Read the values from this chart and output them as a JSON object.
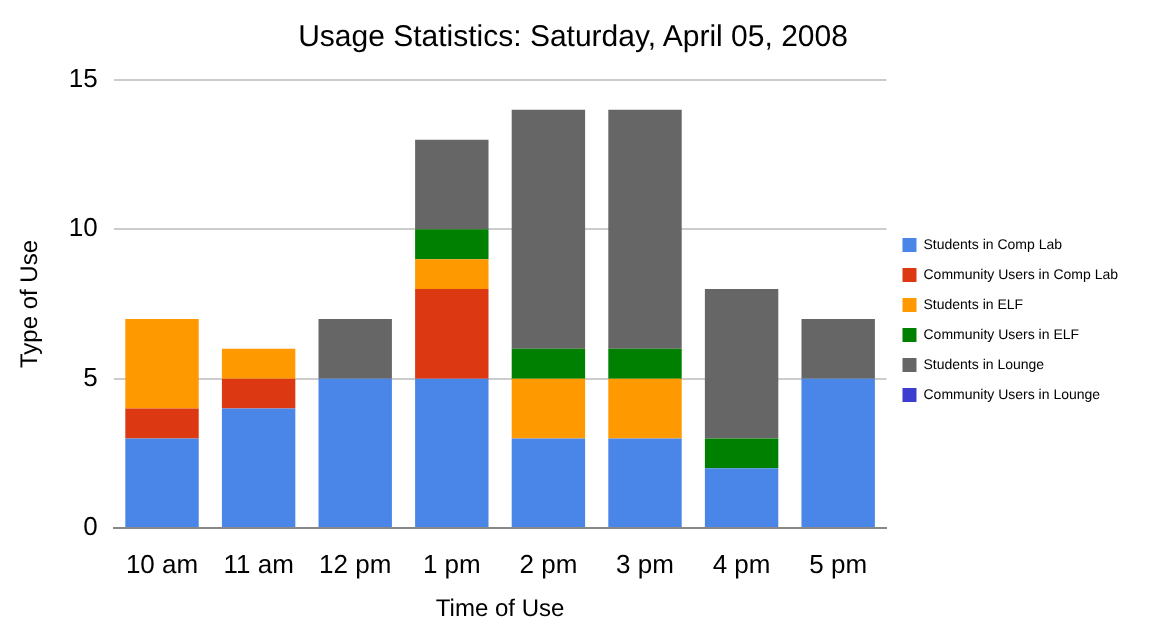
{
  "chart_data": {
    "type": "bar",
    "title": "Usage Statistics: Saturday, April 05, 2008",
    "xlabel": "Time of Use",
    "ylabel": "Type of Use",
    "categories": [
      "10 am",
      "11 am",
      "12 pm",
      "1 pm",
      "2 pm",
      "3 pm",
      "4 pm",
      "5 pm"
    ],
    "stacked": true,
    "ylim": [
      0,
      15
    ],
    "yticks": [
      0,
      5,
      10,
      15
    ],
    "grid": "y",
    "legend": "right",
    "series": [
      {
        "name": "Students in Comp Lab",
        "color": "#4a86e8",
        "values": [
          3,
          4,
          5,
          5,
          3,
          3,
          2,
          5
        ]
      },
      {
        "name": "Community Users in Comp Lab",
        "color": "#dc3912",
        "values": [
          1,
          1,
          0,
          3,
          0,
          0,
          0,
          0
        ]
      },
      {
        "name": "Students in ELF",
        "color": "#ff9900",
        "values": [
          3,
          1,
          0,
          1,
          2,
          2,
          0,
          0
        ]
      },
      {
        "name": "Community Users in ELF",
        "color": "#008000",
        "values": [
          0,
          0,
          0,
          1,
          1,
          1,
          1,
          0
        ]
      },
      {
        "name": "Students in Lounge",
        "color": "#666666",
        "values": [
          0,
          0,
          2,
          3,
          8,
          8,
          5,
          2
        ]
      },
      {
        "name": "Community Users in Lounge",
        "color": "#3d3ecf",
        "values": [
          0,
          0,
          0,
          0,
          0,
          0,
          0,
          0
        ]
      }
    ]
  }
}
